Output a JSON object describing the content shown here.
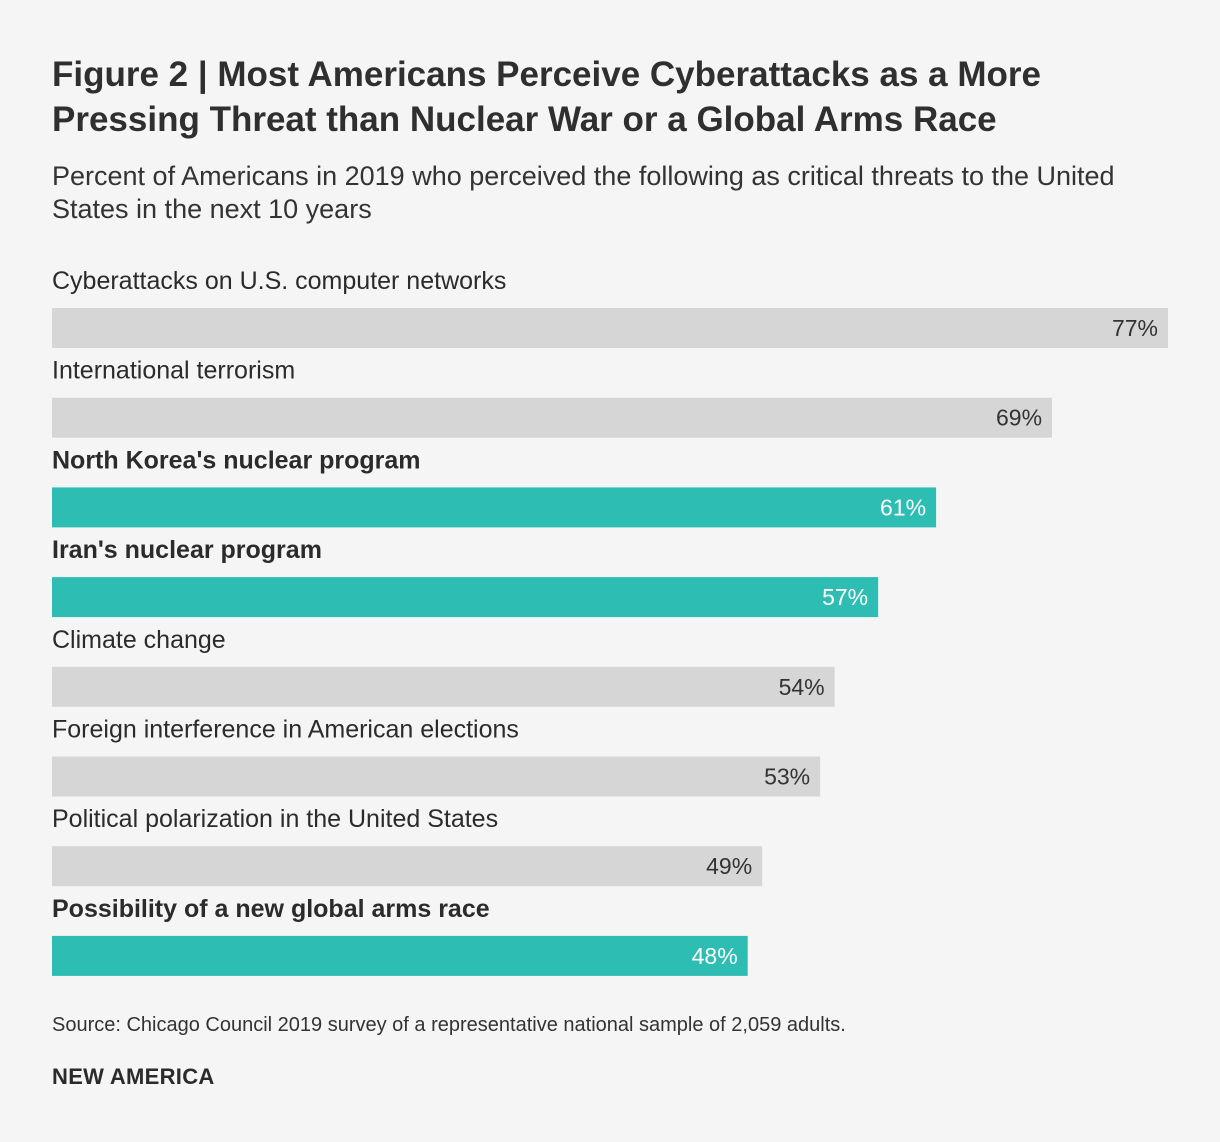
{
  "chart_data": {
    "type": "bar",
    "orientation": "horizontal",
    "title": "Figure 2 | Most Americans Perceive Cyberattacks as a More Pressing Threat than Nuclear War or a Global Arms Race",
    "subtitle": "Percent of Americans in 2019 who perceived the following as critical threats to the United States in the next 10 years",
    "categories": [
      "Cyberattacks on U.S. computer networks",
      "International terrorism",
      "North Korea's nuclear program",
      "Iran's nuclear program",
      "Climate change",
      "Foreign interference in American elections",
      "Political polarization in the United States",
      "Possibility of a new global arms race"
    ],
    "values": [
      77,
      69,
      61,
      57,
      54,
      53,
      49,
      48
    ],
    "value_labels": [
      "77%",
      "69%",
      "61%",
      "57%",
      "54%",
      "53%",
      "49%",
      "48%"
    ],
    "highlighted": [
      false,
      false,
      true,
      true,
      false,
      false,
      false,
      true
    ],
    "xlim": [
      0,
      77
    ],
    "xlabel": "",
    "ylabel": "",
    "grid": false
  },
  "colors": {
    "background": "#f5f5f5",
    "bar_default": "#d6d6d6",
    "bar_highlight": "#2ebdb3",
    "label_on_default": "#333333",
    "label_on_highlight": "#ffffff"
  },
  "source": "Source: Chicago Council 2019 survey of a representative national sample of 2,059 adults.",
  "brand": "NEW AMERICA"
}
